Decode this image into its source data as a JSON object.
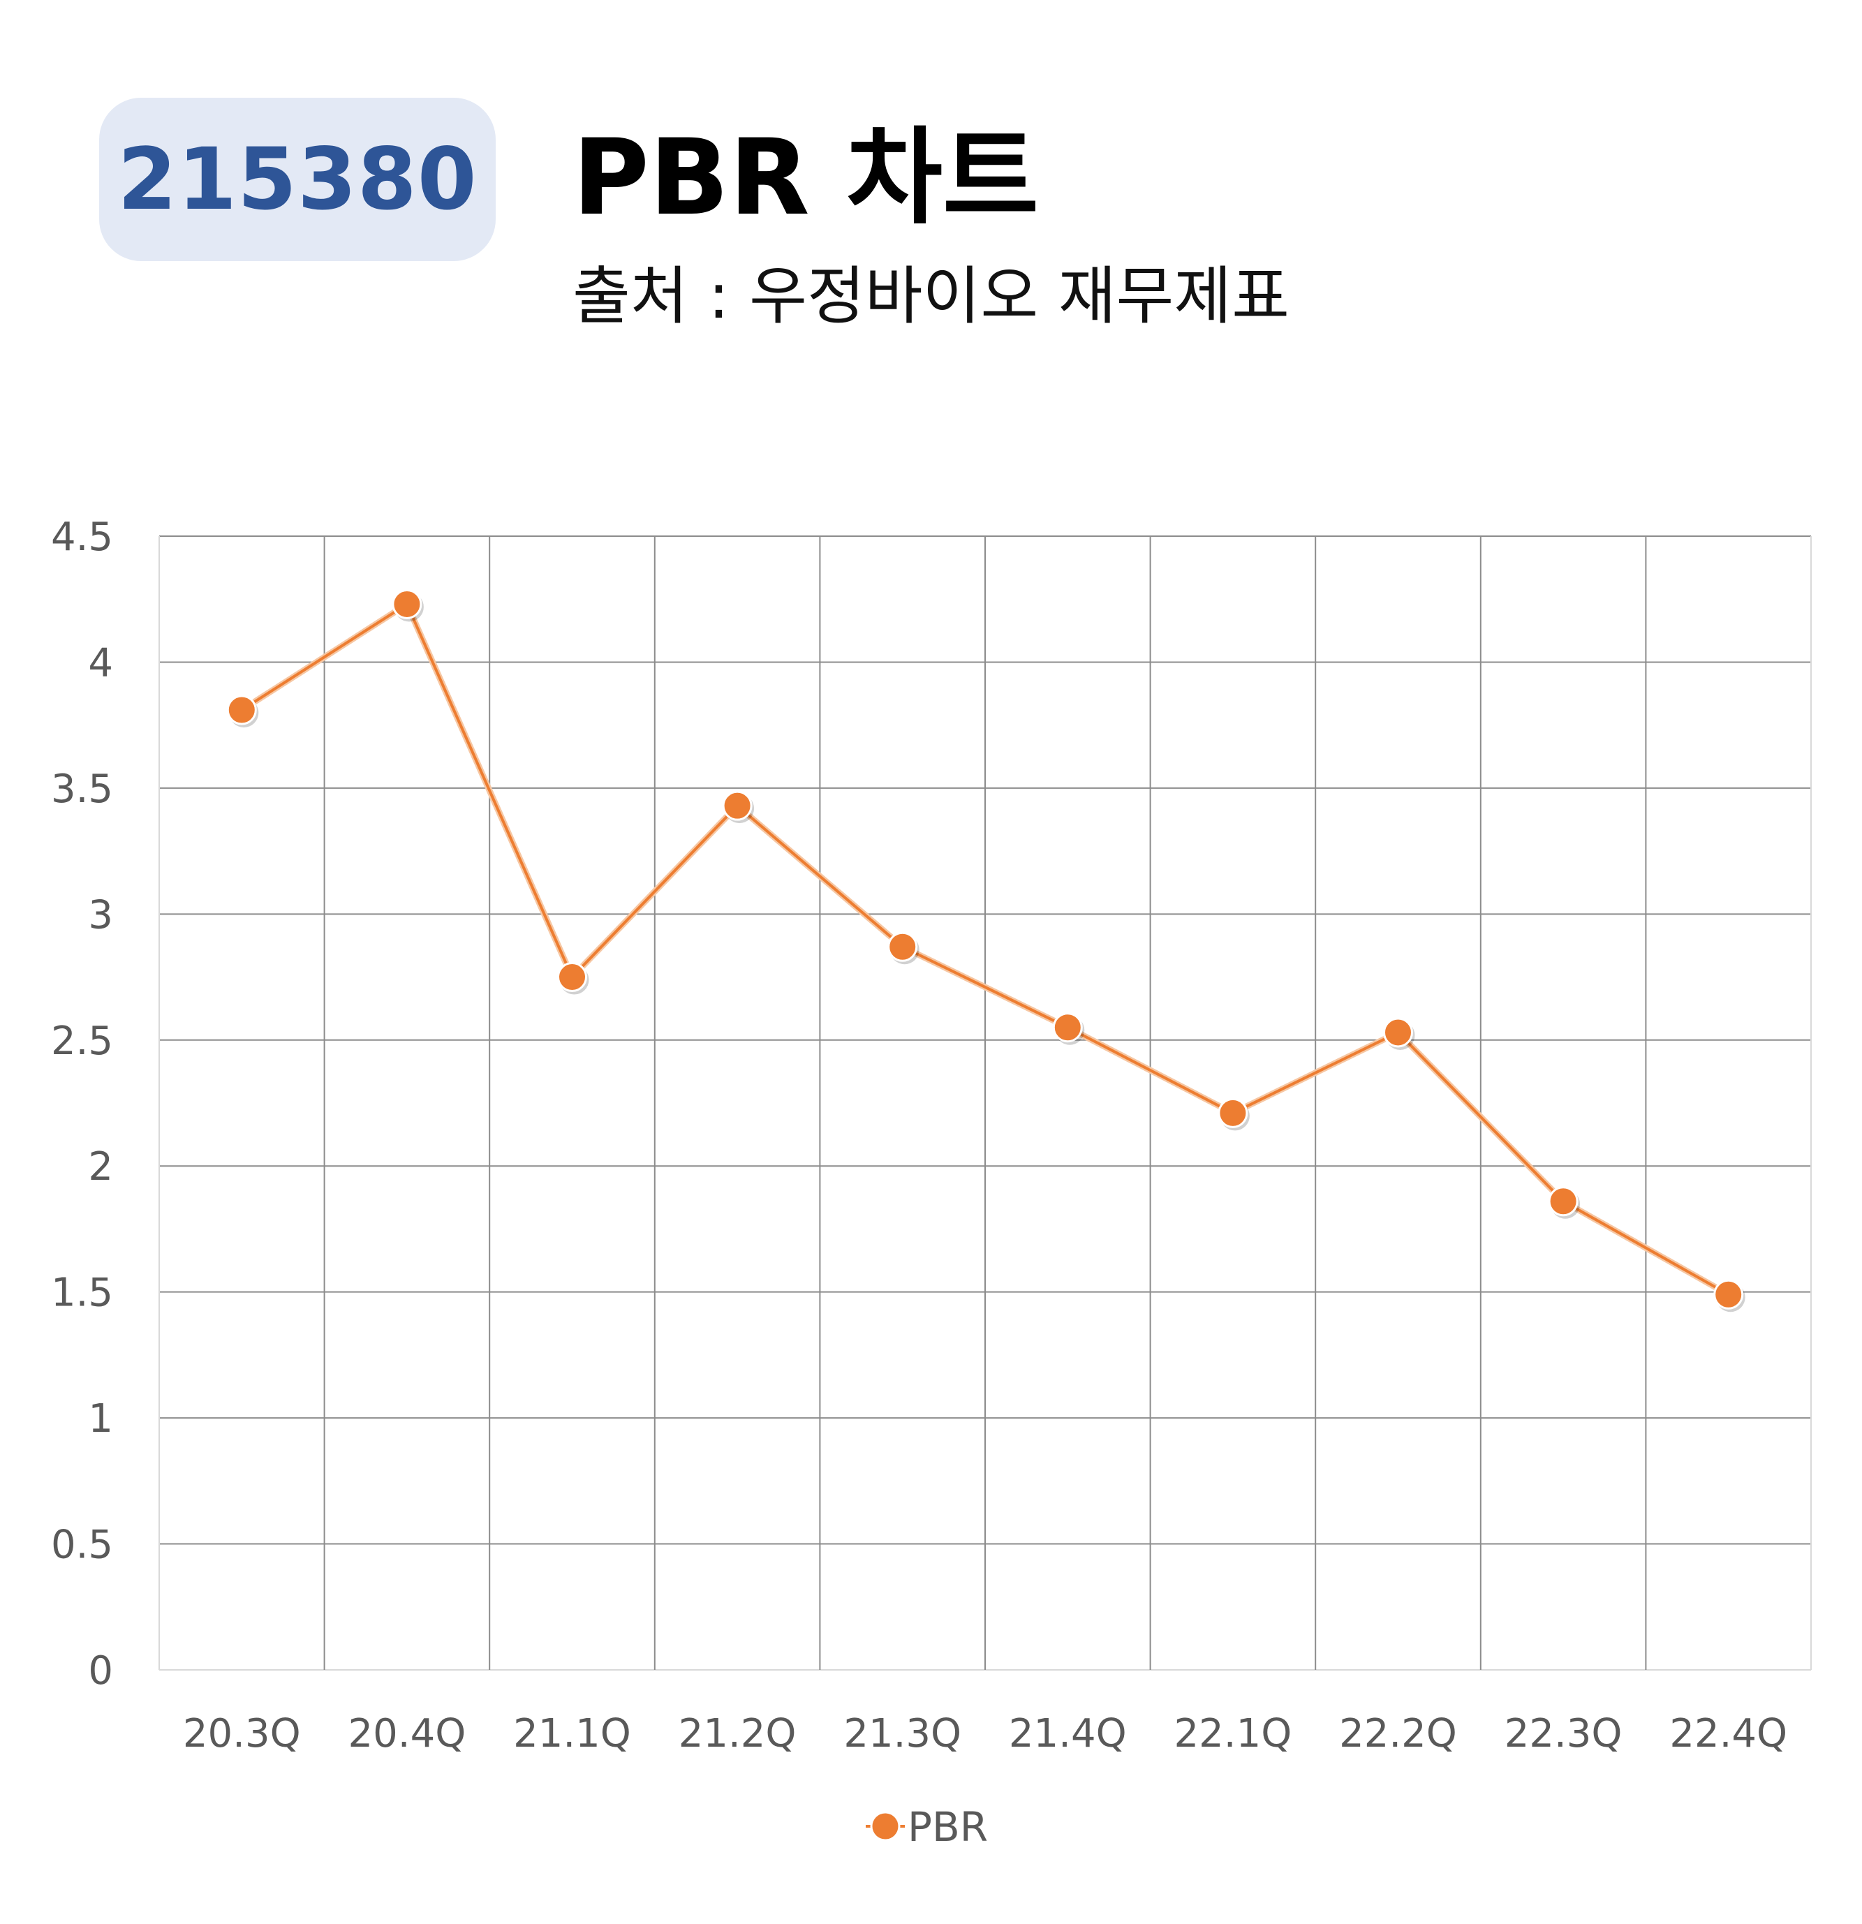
{
  "header": {
    "code": "215380",
    "title": "PBR 차트",
    "subtitle": "출처 : 우정바이오 재무제표"
  },
  "colors": {
    "series": "#ed7d31",
    "badge_bg": "#e3e9f5",
    "badge_text": "#2e5597",
    "grid": "#8c8c8c"
  },
  "chart_data": {
    "type": "line",
    "categories": [
      "20.3Q",
      "20.4Q",
      "21.1Q",
      "21.2Q",
      "21.3Q",
      "21.4Q",
      "22.1Q",
      "22.2Q",
      "22.3Q",
      "22.4Q"
    ],
    "series": [
      {
        "name": "PBR",
        "values": [
          3.81,
          4.23,
          2.75,
          3.43,
          2.87,
          2.55,
          2.21,
          2.53,
          1.86,
          1.49
        ]
      }
    ],
    "ylim": [
      0,
      4.5
    ],
    "yticks": [
      "0",
      "0.5",
      "1",
      "1.5",
      "2",
      "2.5",
      "3",
      "3.5",
      "4",
      "4.5"
    ],
    "grid": true,
    "legend": "bottom",
    "markers": true
  }
}
